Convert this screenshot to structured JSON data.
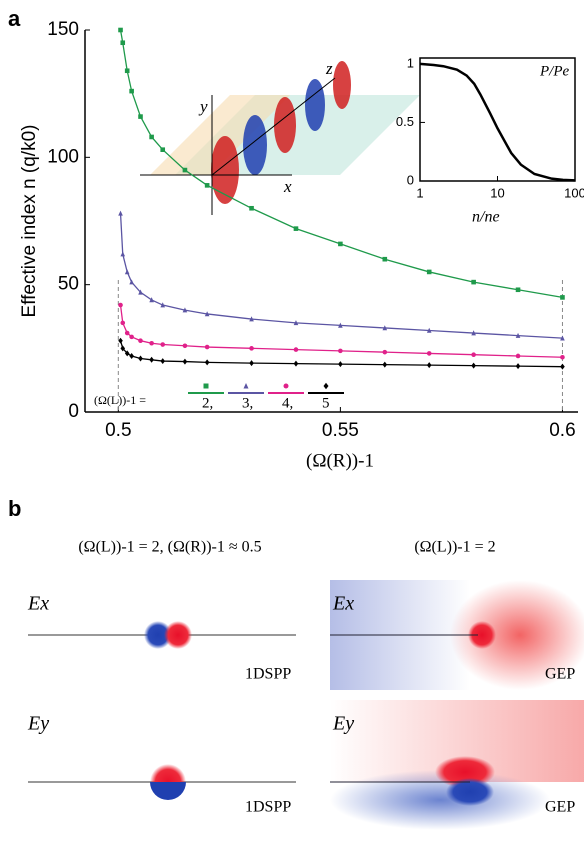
{
  "panel_labels": [
    "a",
    "b"
  ],
  "chart_data": [
    {
      "type": "line",
      "xlabel": "(Ω(R))-1",
      "ylabel": "Effective index n (q/k0)",
      "x": [
        0.5005,
        0.501,
        0.502,
        0.503,
        0.505,
        0.5075,
        0.51,
        0.515,
        0.52,
        0.53,
        0.54,
        0.55,
        0.56,
        0.57,
        0.58,
        0.59,
        0.6
      ],
      "legend_title": "(Ω(L))-1 =",
      "series": [
        {
          "name": "2,",
          "color": "#1f9a4b",
          "marker": "square",
          "values": [
            150,
            145,
            134,
            126,
            116,
            108,
            103,
            95,
            89,
            80,
            72,
            66,
            60,
            55,
            51,
            48,
            45
          ]
        },
        {
          "name": "3,",
          "color": "#5b55a3",
          "marker": "triangle",
          "values": [
            78,
            62,
            55,
            51,
            47,
            44,
            42,
            40,
            38.5,
            36.5,
            35,
            34,
            33,
            32,
            31,
            30,
            29
          ]
        },
        {
          "name": "4,",
          "color": "#e0218a",
          "marker": "circle",
          "values": [
            42,
            35,
            31,
            29.5,
            28,
            27,
            26.5,
            26,
            25.5,
            25,
            24.5,
            24,
            23.5,
            23,
            22.5,
            22,
            21.5
          ]
        },
        {
          "name": "5",
          "color": "#000000",
          "marker": "diamond",
          "values": [
            28,
            25,
            23,
            22,
            21,
            20.5,
            20,
            19.8,
            19.5,
            19.2,
            19,
            18.8,
            18.6,
            18.4,
            18.2,
            18,
            17.8
          ]
        }
      ],
      "xlim": [
        0.4925,
        0.6035
      ],
      "ylim": [
        0,
        150
      ],
      "xticks": [
        0.5,
        0.55,
        0.6
      ],
      "yticks": [
        0,
        50,
        100,
        150
      ]
    },
    {
      "type": "line",
      "ylabel": "P/Pe",
      "xlabel": "n/ne",
      "xscale": "log",
      "x": [
        1,
        1.5,
        2,
        3,
        4,
        5,
        6,
        8,
        10,
        15,
        20,
        30,
        50,
        70,
        100
      ],
      "series": [
        {
          "color": "#000000",
          "values": [
            1,
            0.99,
            0.98,
            0.95,
            0.9,
            0.83,
            0.74,
            0.58,
            0.45,
            0.24,
            0.14,
            0.06,
            0.02,
            0.01,
            0.005
          ]
        }
      ],
      "xlim": [
        1,
        100
      ],
      "ylim": [
        0,
        1.05
      ],
      "xticks": [
        1,
        10,
        100
      ],
      "yticks": [
        0,
        0.5,
        1
      ]
    }
  ],
  "illustration": {
    "axis_labels": [
      "x",
      "y",
      "z"
    ]
  },
  "panel_b": {
    "columns": [
      {
        "title": "(Ω(L))-1 = 2, (Ω(R))-1 ≈ 0.5",
        "maps": [
          {
            "component": "Ex",
            "mode": "1DSPP"
          },
          {
            "component": "Ey",
            "mode": "1DSPP"
          }
        ]
      },
      {
        "title": "(Ω(L))-1 = 2",
        "maps": [
          {
            "component": "Ex",
            "mode": "GEP"
          },
          {
            "component": "Ey",
            "mode": "GEP"
          }
        ]
      }
    ]
  }
}
